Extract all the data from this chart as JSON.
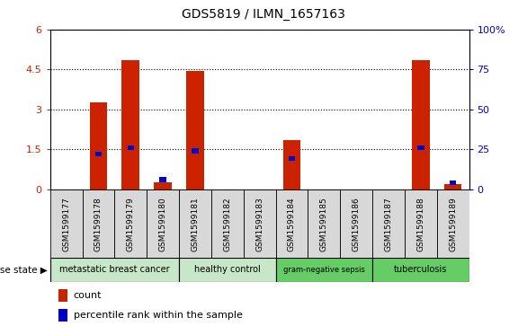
{
  "title": "GDS5819 / ILMN_1657163",
  "samples": [
    "GSM1599177",
    "GSM1599178",
    "GSM1599179",
    "GSM1599180",
    "GSM1599181",
    "GSM1599182",
    "GSM1599183",
    "GSM1599184",
    "GSM1599185",
    "GSM1599186",
    "GSM1599187",
    "GSM1599188",
    "GSM1599189"
  ],
  "counts": [
    0.0,
    3.25,
    4.85,
    0.25,
    4.45,
    0.0,
    0.0,
    1.85,
    0.0,
    0.0,
    0.0,
    4.85,
    0.2
  ],
  "percentile_ranks": [
    0.0,
    22.0,
    26.0,
    6.0,
    24.0,
    0.0,
    0.0,
    19.0,
    0.0,
    0.0,
    0.0,
    26.0,
    4.0
  ],
  "ylim_left": [
    0,
    6
  ],
  "ylim_right": [
    0,
    100
  ],
  "yticks_left": [
    0,
    1.5,
    3.0,
    4.5,
    6
  ],
  "yticks_right": [
    0,
    25,
    50,
    75,
    100
  ],
  "ytick_labels_left": [
    "0",
    "1.5",
    "3",
    "4.5",
    "6"
  ],
  "ytick_labels_right": [
    "0",
    "25",
    "50",
    "75",
    "100%"
  ],
  "disease_groups": [
    {
      "label": "metastatic breast cancer",
      "start": 0,
      "end": 4,
      "color": "#c8e6c8"
    },
    {
      "label": "healthy control",
      "start": 4,
      "end": 7,
      "color": "#c8e6c8"
    },
    {
      "label": "gram-negative sepsis",
      "start": 7,
      "end": 10,
      "color": "#66cc66"
    },
    {
      "label": "tuberculosis",
      "start": 10,
      "end": 13,
      "color": "#66cc66"
    }
  ],
  "disease_state_label": "disease state",
  "bar_color": "#cc2200",
  "percentile_color": "#0000cc",
  "legend_count_label": "count",
  "legend_percentile_label": "percentile rank within the sample",
  "bar_width": 0.55,
  "background_color": "#ffffff",
  "plot_bg_color": "#ffffff",
  "tick_label_color_left": "#cc2200",
  "tick_label_color_right": "#0000cc",
  "tick_cell_bg": "#d8d8d8",
  "border_color": "#000000"
}
